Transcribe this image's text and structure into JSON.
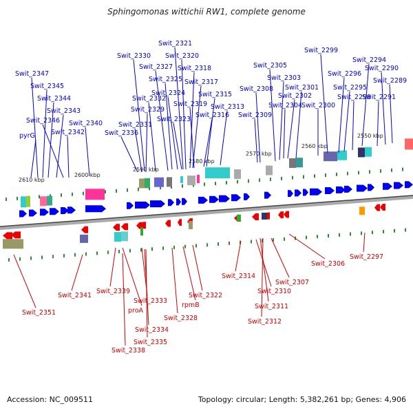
{
  "title": "Sphingomonas wittichii RW1, complete genome",
  "footer": {
    "accession": "Accession: NC_009511",
    "summary": "Topology: circular; Length: 5,382,261 bp; Genes: 4,906"
  },
  "ticks": [
    "2610 kbp",
    "2600 kbp",
    "2590 kbp",
    "2580 kbp",
    "2570 kbp",
    "2560 kbp",
    "2550 kbp"
  ],
  "forward_labels": [
    "Swit_2347",
    "Swit_2345",
    "Swit_2344",
    "Swit_2343",
    "Swit_2346",
    "Swit_2342",
    "pyrG",
    "Swit_2340",
    "Swit_2336",
    "Swit_2331",
    "Swit_2329",
    "Swit_2332",
    "Swit_2330",
    "Swit_2327",
    "Swit_2325",
    "Swit_2324",
    "Swit_2323",
    "Swit_2321",
    "Swit_2320",
    "Swit_2318",
    "Swit_2317",
    "Swit_2319",
    "Swit_2315",
    "Swit_2316",
    "Swit_2313",
    "Swit_2308",
    "Swit_2309",
    "Swit_2305",
    "Swit_2303",
    "Swit_2302",
    "Swit_2304",
    "Swit_2301",
    "Swit_2300",
    "Swit_2299",
    "Swit_2294",
    "Swit_2296",
    "Swit_2295",
    "Swit_2298",
    "Swit_2290",
    "Swit_2289",
    "Swit_2291"
  ],
  "reverse_labels": [
    "Swit_2351",
    "Swit_2341",
    "Swit_2339",
    "proA",
    "Swit_2338",
    "Swit_2333",
    "Swit_2334",
    "Swit_2335",
    "Swit_2328",
    "rpmB",
    "Swit_2322",
    "Swit_2314",
    "Swit_2310",
    "Swit_2311",
    "Swit_2312",
    "Swit_2307",
    "Swit_2306",
    "Swit_2297"
  ]
}
